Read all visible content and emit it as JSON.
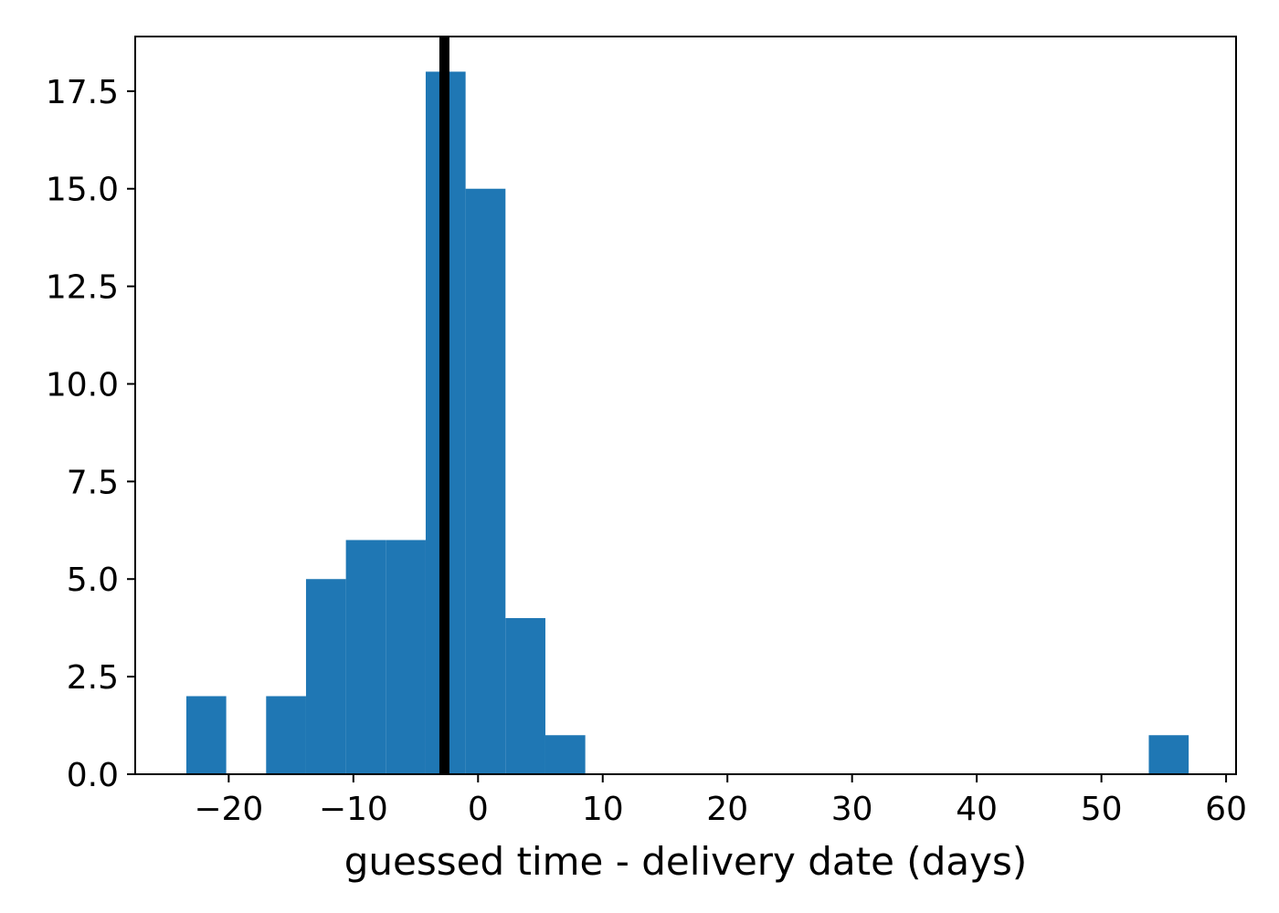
{
  "chart_data": {
    "type": "histogram",
    "title": "",
    "xlabel": "guessed time - delivery date (days)",
    "ylabel": "",
    "xlim": [
      -27.5,
      60.8
    ],
    "ylim": [
      0,
      18.9
    ],
    "bar_color": "#1f77b4",
    "bins": [
      {
        "x0": -23.4,
        "x1": -20.2,
        "count": 2
      },
      {
        "x0": -20.2,
        "x1": -17.0,
        "count": 0
      },
      {
        "x0": -17.0,
        "x1": -13.8,
        "count": 2
      },
      {
        "x0": -13.8,
        "x1": -10.6,
        "count": 5
      },
      {
        "x0": -10.6,
        "x1": -7.4,
        "count": 6
      },
      {
        "x0": -7.4,
        "x1": -4.2,
        "count": 6
      },
      {
        "x0": -4.2,
        "x1": -1.0,
        "count": 18
      },
      {
        "x0": -1.0,
        "x1": 2.2,
        "count": 15
      },
      {
        "x0": 2.2,
        "x1": 5.4,
        "count": 4
      },
      {
        "x0": 5.4,
        "x1": 8.6,
        "count": 1
      },
      {
        "x0": 53.8,
        "x1": 57.0,
        "count": 1
      }
    ],
    "vertical_line": {
      "x": -2.7,
      "color": "#000000"
    },
    "x_ticks": [
      {
        "value": -20,
        "label": "−20"
      },
      {
        "value": -10,
        "label": "−10"
      },
      {
        "value": 0,
        "label": "0"
      },
      {
        "value": 10,
        "label": "10"
      },
      {
        "value": 20,
        "label": "20"
      },
      {
        "value": 30,
        "label": "30"
      },
      {
        "value": 40,
        "label": "40"
      },
      {
        "value": 50,
        "label": "50"
      },
      {
        "value": 60,
        "label": "60"
      }
    ],
    "y_ticks": [
      {
        "value": 0.0,
        "label": "0.0"
      },
      {
        "value": 2.5,
        "label": "2.5"
      },
      {
        "value": 5.0,
        "label": "5.0"
      },
      {
        "value": 7.5,
        "label": "7.5"
      },
      {
        "value": 10.0,
        "label": "10.0"
      },
      {
        "value": 12.5,
        "label": "12.5"
      },
      {
        "value": 15.0,
        "label": "15.0"
      },
      {
        "value": 17.5,
        "label": "17.5"
      }
    ],
    "grid": false,
    "legend": null
  }
}
